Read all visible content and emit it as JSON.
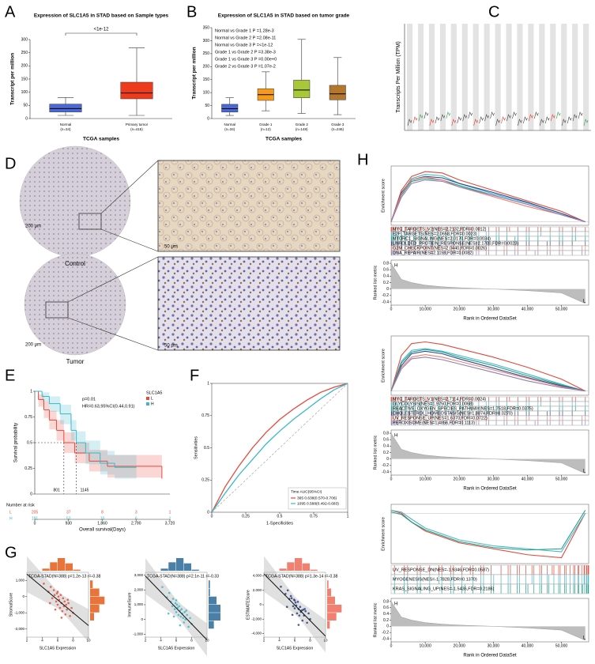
{
  "image_panel": {
    "panel": "D",
    "labels": [
      "Control",
      "Tumor"
    ],
    "scale_bars": [
      "200 μm",
      "50 μm"
    ]
  },
  "chart_data": [
    {
      "panel": "A",
      "type": "box",
      "title": "Expression of SLC1A5 in STAD based on Sample types",
      "annotation": "<1e-12",
      "categories": [
        "Normal",
        "Primary tumor"
      ],
      "category_notes": [
        "(n=34)",
        "(n=415)"
      ],
      "boxes": [
        {
          "color": "#4a69d6",
          "min": 12,
          "q1": 25,
          "median": 38,
          "q3": 55,
          "max": 80
        },
        {
          "color": "#ee3b1c",
          "min": 12,
          "q1": 75,
          "median": 97,
          "q3": 138,
          "max": 268
        }
      ],
      "ylim": [
        0,
        300
      ],
      "yticks": [
        0,
        50,
        100,
        150,
        200,
        250,
        300
      ],
      "ylabel": "Transcript per million",
      "xlabel": "TCGA samples"
    },
    {
      "panel": "B",
      "type": "box",
      "title": "Expression of SLC1A5 in STAD based on tumor grade",
      "annotations": [
        "Normal vs Grade 1   P =1.28e-3",
        "Normal vs Grade 2   P =2.08e-11",
        "Normal vs Grade 3   P =<1e-12",
        "Grade 1 vs Grade 2   P =3.38e-3",
        "Grade 1 vs Grade 3   P =0.00e+0",
        "Grade 2 vs Grade 3   P =1.07e-2"
      ],
      "categories": [
        "Normal",
        "Grade 1",
        "Grade 2",
        "Grade 3"
      ],
      "category_notes": [
        "(n=34)",
        "(n=12)",
        "(n=148)",
        "(n=246)"
      ],
      "boxes": [
        {
          "color": "#4a69d6",
          "min": 12,
          "q1": 25,
          "median": 38,
          "q3": 55,
          "max": 80
        },
        {
          "color": "#f59a1a",
          "min": 30,
          "q1": 70,
          "median": 92,
          "q3": 115,
          "max": 180
        },
        {
          "color": "#a8c83a",
          "min": 20,
          "q1": 80,
          "median": 110,
          "q3": 148,
          "max": 305
        },
        {
          "color": "#b3772e",
          "min": 15,
          "q1": 72,
          "median": 95,
          "q3": 128,
          "max": 235
        }
      ],
      "ylim": [
        0,
        350
      ],
      "yticks": [
        0,
        50,
        100,
        150,
        200,
        250,
        300,
        350
      ],
      "ylabel": "Transcript per million",
      "xlabel": "TCGA samples"
    },
    {
      "panel": "C",
      "type": "strip",
      "ylabel": "Transcripts Per Million (TPM)"
    },
    {
      "panel": "E",
      "type": "km",
      "annotations": [
        "p=0.01",
        "HR=0.63,95%CI(0.44,0.91)"
      ],
      "legend_title": "SLC1A5",
      "series": [
        {
          "name": "L",
          "color": "#e8473c",
          "x": [
            0,
            100,
            250,
            400,
            600,
            801,
            1100,
            1500,
            2000,
            3500
          ],
          "values": [
            1,
            0.92,
            0.82,
            0.72,
            0.62,
            0.5,
            0.4,
            0.32,
            0.27,
            0.15
          ],
          "lower": [
            1,
            0.85,
            0.74,
            0.63,
            0.52,
            0.4,
            0.3,
            0.22,
            0.16,
            0.02
          ],
          "upper": [
            1,
            0.97,
            0.9,
            0.81,
            0.72,
            0.6,
            0.5,
            0.43,
            0.38,
            0.3
          ],
          "at_risk": [
            205,
            37,
            8,
            3,
            1
          ]
        },
        {
          "name": "H",
          "color": "#39b8c9",
          "x": [
            0,
            200,
            400,
            700,
            1000,
            1145,
            1400,
            1800,
            2200,
            2800
          ],
          "values": [
            1,
            0.95,
            0.88,
            0.78,
            0.62,
            0.5,
            0.4,
            0.3,
            0.26,
            0.26
          ],
          "lower": [
            1,
            0.9,
            0.8,
            0.68,
            0.52,
            0.39,
            0.29,
            0.19,
            0.15,
            0.12
          ],
          "upper": [
            1,
            0.99,
            0.95,
            0.87,
            0.72,
            0.61,
            0.52,
            0.42,
            0.38,
            0.4
          ],
          "at_risk": [
            181,
            52,
            10,
            6,
            1
          ]
        }
      ],
      "medians": [
        801,
        1145
      ],
      "risk_title": "Number at risk",
      "xlim": [
        0,
        3720
      ],
      "xticks": [
        0,
        930,
        {
          "value": 1860,
          "label": "1,860"
        },
        {
          "value": 2790,
          "label": "2,790"
        },
        {
          "value": 3720,
          "label": "3,720"
        }
      ],
      "ylim": [
        0,
        1
      ],
      "yticks": [
        0,
        0.25,
        0.5,
        0.75,
        1
      ],
      "ylabel": "Survival probability",
      "xlabel": "Overall survival(Days)"
    },
    {
      "panel": "F",
      "type": "roc",
      "legend_title": "Time AUC(95%CI)",
      "x": [
        0,
        0.1,
        0.2,
        0.3,
        0.4,
        0.5,
        0.6,
        0.7,
        0.8,
        0.9,
        1
      ],
      "series": [
        {
          "name": "365 0.638(0.570-0.706)",
          "color": "#e8473c",
          "values": [
            0,
            0.2,
            0.36,
            0.5,
            0.62,
            0.72,
            0.8,
            0.87,
            0.93,
            0.97,
            1
          ]
        },
        {
          "name": "1095 0.588(0.492-0.683)",
          "color": "#39b8c9",
          "values": [
            0,
            0.15,
            0.29,
            0.41,
            0.53,
            0.63,
            0.72,
            0.8,
            0.88,
            0.95,
            1
          ]
        }
      ],
      "xlim": [
        0,
        1
      ],
      "ylim": [
        0,
        1
      ],
      "xticks": [
        0,
        0.25,
        0.5,
        0.75,
        1
      ],
      "yticks": [
        0,
        0.25,
        0.5,
        0.75,
        1
      ],
      "xlabel": "1-Specificities",
      "ylabel": "Sensitivities"
    },
    {
      "panel": "G",
      "type": "scatter_hist",
      "title": "TCGA-STAD(N=388) p=1.2e-13 r=-0.38",
      "color": "#e0503c",
      "hist_color": "#e8743c",
      "x": [
        4.2,
        4.8,
        5.1,
        5.3,
        5.5,
        5.6,
        5.8,
        5.9,
        6.0,
        6.1,
        6.2,
        6.3,
        6.4,
        6.5,
        6.6,
        6.7,
        6.8,
        6.9,
        7.0,
        7.1,
        7.2,
        7.4,
        7.6,
        7.8,
        8.0,
        5.0,
        6.0,
        6.5,
        7.3,
        5.7
      ],
      "values": [
        800,
        300,
        600,
        -100,
        400,
        100,
        -300,
        200,
        -500,
        0,
        -200,
        -700,
        100,
        -400,
        -900,
        -100,
        -600,
        -300,
        -1100,
        -500,
        -800,
        -400,
        -1200,
        -700,
        -1000,
        -400,
        300,
        -1300,
        -200,
        -800
      ],
      "xlim": [
        2,
        10
      ],
      "xticks": [
        2,
        4,
        6,
        8,
        10
      ],
      "ylim": [
        -2500,
        1500
      ],
      "yticks": [
        {
          "value": -2000,
          "label": "-2,000"
        },
        {
          "value": -1000,
          "label": "-1,000"
        },
        0,
        {
          "value": 1000,
          "label": "1,000"
        }
      ],
      "xlabel": "SLC1A5 Expression",
      "ylabel": "StromalScore"
    },
    {
      "type": "scatter_hist",
      "title": "TCGA-STAD(N=388) p=2.1e-11 r=-0.33",
      "color": "#3cb8cc",
      "hist_color": "#4a7fa8",
      "x": [
        4.2,
        4.8,
        5.1,
        5.3,
        5.5,
        5.6,
        5.8,
        5.9,
        6.0,
        6.1,
        6.2,
        6.3,
        6.4,
        6.5,
        6.6,
        6.7,
        6.8,
        6.9,
        7.0,
        7.1,
        7.2,
        7.4,
        7.6,
        7.8,
        8.0,
        5.0,
        6.0,
        6.5,
        7.3,
        5.7
      ],
      "values": [
        2200,
        1500,
        1800,
        1200,
        900,
        1400,
        700,
        1100,
        500,
        1000,
        800,
        300,
        900,
        600,
        200,
        700,
        400,
        100,
        -200,
        500,
        0,
        300,
        -500,
        100,
        -300,
        400,
        1300,
        -400,
        600,
        200
      ],
      "xlim": [
        2,
        10
      ],
      "xticks": [
        2,
        4,
        6,
        8,
        10
      ],
      "ylim": [
        -1200,
        3200
      ],
      "yticks": [
        {
          "value": -1000,
          "label": "-1,000"
        },
        0,
        {
          "value": 1000,
          "label": "1,000"
        },
        {
          "value": 2000,
          "label": "2,000"
        },
        {
          "value": 3000,
          "label": "3,000"
        }
      ],
      "xlabel": "SLC1A5 Expression",
      "ylabel": "ImmuneScore"
    },
    {
      "type": "scatter_hist",
      "title": "TCGA-STAD(N=388) p=1.3e-14 r=-0.38",
      "color": "#2c3e80",
      "hist_color": "#f08070",
      "x": [
        4.2,
        4.8,
        5.1,
        5.3,
        5.5,
        5.6,
        5.8,
        5.9,
        6.0,
        6.1,
        6.2,
        6.3,
        6.4,
        6.5,
        6.6,
        6.7,
        6.8,
        6.9,
        7.0,
        7.1,
        7.2,
        7.4,
        7.6,
        7.8,
        8.0,
        5.0,
        6.0,
        6.5,
        7.3,
        5.7
      ],
      "values": [
        2500,
        1500,
        2000,
        800,
        1200,
        900,
        -200,
        700,
        -500,
        300,
        -100,
        -1200,
        400,
        -600,
        -1500,
        -300,
        -1000,
        -800,
        -2200,
        -700,
        -1500,
        -900,
        -2500,
        -1200,
        -2000,
        -300,
        600,
        -2800,
        -600,
        -1400
      ],
      "xlim": [
        2,
        10
      ],
      "xticks": [
        2,
        4,
        6,
        8,
        10
      ],
      "ylim": [
        -4500,
        4500
      ],
      "yticks": [
        {
          "value": -4000,
          "label": "-4,000"
        },
        {
          "value": -2000,
          "label": "-2,000"
        },
        0,
        {
          "value": 2000,
          "label": "2,000"
        },
        {
          "value": 4000,
          "label": "4,000"
        }
      ],
      "xlabel": "SLC1A5 Expression",
      "ylabel": "ESTIMATEScore"
    },
    {
      "panel": "H",
      "type": "gsea",
      "ylabel": "Enrichment score",
      "y2label": "Ranked list metric",
      "xlabel": "Rank in Ordered DataSet",
      "high_label": "H",
      "low_label": "L",
      "x": [
        0,
        3000,
        6000,
        10000,
        15000,
        20000,
        30000,
        40000,
        50000,
        57000
      ],
      "metric": [
        0.8,
        0.3,
        0.2,
        0.12,
        0.07,
        0.04,
        0,
        -0.05,
        -0.12,
        -0.45
      ],
      "series": [
        {
          "name": "MYC_TARGETS_V2(NES=2.2132,FDR=0.0012)",
          "color": "#e04a3a",
          "values": [
            0,
            0.45,
            0.65,
            0.72,
            0.7,
            0.6,
            0.45,
            0.3,
            0.15,
            0
          ]
        },
        {
          "name": "E2F_TARGETS(NES=2.0658,FDR=0.0023)",
          "color": "#4fb3c8",
          "values": [
            0,
            0.4,
            0.62,
            0.68,
            0.66,
            0.55,
            0.4,
            0.27,
            0.12,
            0
          ]
        },
        {
          "name": "MTORC1_SIGNALING(NES=2.0170,FDR=0.0034)",
          "color": "#1b9e8a",
          "values": [
            0,
            0.38,
            0.58,
            0.62,
            0.6,
            0.52,
            0.38,
            0.25,
            0.1,
            0
          ]
        },
        {
          "name": "UNFOLDED_PROTEIN_RESPONSE(NES=2.1700,FDR=0.0023)",
          "color": "#2b4c8c",
          "values": [
            0,
            0.42,
            0.6,
            0.65,
            0.63,
            0.55,
            0.42,
            0.28,
            0.12,
            0
          ]
        },
        {
          "name": "G2M_CHECKPOINT(NES=2.0440,FDR=0.0026)",
          "color": "#f08070",
          "values": [
            0,
            0.4,
            0.6,
            0.64,
            0.6,
            0.5,
            0.36,
            0.22,
            0.1,
            0
          ]
        },
        {
          "name": "DNA_REPAIR(NES=2.1159,FDR=0.0082)",
          "color": "#8f7fb8",
          "values": [
            0,
            0.35,
            0.55,
            0.6,
            0.58,
            0.5,
            0.38,
            0.25,
            0.1,
            0
          ]
        }
      ],
      "xlim": [
        0,
        58000
      ],
      "xticks": [
        0,
        {
          "value": 10000,
          "label": "10,000"
        },
        {
          "value": 20000,
          "label": "20,000"
        },
        {
          "value": 30000,
          "label": "30,000"
        },
        {
          "value": 40000,
          "label": "40,000"
        },
        {
          "value": 50000,
          "label": "50,000"
        }
      ],
      "ylim": [
        -0.05,
        0.8
      ],
      "y2lim": [
        -0.5,
        0.9
      ],
      "y2ticks": [
        0.8,
        0.6,
        0.4,
        0.2,
        0,
        -0.2,
        -0.4
      ]
    },
    {
      "type": "gsea",
      "ylabel": "Enrichment score",
      "y2label": "Ranked list metric",
      "xlabel": "Rank in Ordered DataSet",
      "high_label": "H",
      "low_label": "L",
      "x": [
        0,
        3000,
        6000,
        10000,
        15000,
        20000,
        30000,
        40000,
        50000,
        57000
      ],
      "metric": [
        0.8,
        0.3,
        0.2,
        0.12,
        0.07,
        0.04,
        0,
        -0.05,
        -0.12,
        -0.45
      ],
      "series": [
        {
          "name": "MYC_TARGETS_V1(NES=2.7114,FDR=0.0024)",
          "color": "#e04a3a",
          "values": [
            0,
            0.42,
            0.56,
            0.58,
            0.55,
            0.5,
            0.4,
            0.28,
            0.14,
            0
          ]
        },
        {
          "name": "GLYCOLYSIS(NES=1.9750,FDR=0.0068)",
          "color": "#4fb3c8",
          "values": [
            0,
            0.35,
            0.48,
            0.5,
            0.47,
            0.42,
            0.32,
            0.2,
            0.08,
            0
          ]
        },
        {
          "name": "REACTIVE_OXYGEN_SPECIES_PATHWAY(NES=1.7518,FDR=0.0375)",
          "color": "#1b9e8a",
          "values": [
            0,
            0.33,
            0.46,
            0.49,
            0.46,
            0.4,
            0.3,
            0.18,
            0.07,
            0
          ]
        },
        {
          "name": "CHOLESTEROL_HOMEOSTASIS(NES=1.8874,FDR=0.0270)",
          "color": "#2b4c8c",
          "values": [
            0,
            0.3,
            0.44,
            0.47,
            0.44,
            0.38,
            0.27,
            0.16,
            0.06,
            0
          ]
        },
        {
          "name": "UV_RESPONSE_UP(NES=1.6370,FDR=0.0722)",
          "color": "#f08070",
          "values": [
            0,
            0.28,
            0.4,
            0.43,
            0.4,
            0.35,
            0.25,
            0.15,
            0.05,
            0
          ]
        },
        {
          "name": "PEROXISOME(NES=1.4856,FDR=0.1113)",
          "color": "#8f7fb8",
          "values": [
            0,
            0.26,
            0.38,
            0.4,
            0.37,
            0.32,
            0.22,
            0.12,
            0.04,
            0
          ]
        }
      ],
      "xlim": [
        0,
        58000
      ],
      "xticks": [
        0,
        {
          "value": 10000,
          "label": "10,000"
        },
        {
          "value": 20000,
          "label": "20,000"
        },
        {
          "value": 30000,
          "label": "30,000"
        },
        {
          "value": 40000,
          "label": "40,000"
        },
        {
          "value": 50000,
          "label": "50,000"
        }
      ],
      "ylim": [
        -0.05,
        0.65
      ],
      "y2lim": [
        -0.5,
        0.9
      ],
      "y2ticks": [
        0.8,
        0.6,
        0.4,
        0.2,
        0,
        -0.2,
        -0.4
      ]
    },
    {
      "type": "gsea",
      "ylabel": "Enrichment score",
      "y2label": "Ranked list metric",
      "xlabel": "Rank in Ordered DataSet",
      "high_label": "H",
      "low_label": "L",
      "x": [
        0,
        3000,
        6000,
        10000,
        15000,
        20000,
        30000,
        40000,
        50000,
        57000
      ],
      "metric": [
        0.8,
        0.3,
        0.2,
        0.12,
        0.07,
        0.04,
        0,
        -0.05,
        -0.12,
        -0.45
      ],
      "series": [
        {
          "name": "UV_RESPONSE_DN(NES=-1.9346,FDR=0.0587)",
          "color": "#e04a3a",
          "values": [
            0.05,
            0,
            -0.15,
            -0.3,
            -0.4,
            -0.5,
            -0.6,
            -0.7,
            -0.75,
            0
          ]
        },
        {
          "name": "MYOGENESIS(NES=-1.7828,FDR=0.1370)",
          "color": "#4fb3c8",
          "values": [
            0.05,
            0.02,
            -0.1,
            -0.25,
            -0.35,
            -0.45,
            -0.55,
            -0.6,
            -0.65,
            0
          ]
        },
        {
          "name": "KRAS_SIGNALING_UP(NES=-1.5436,FDR=0.2186)",
          "color": "#1b9e8a",
          "values": [
            0.02,
            -0.02,
            -0.15,
            -0.28,
            -0.38,
            -0.48,
            -0.58,
            -0.62,
            -0.6,
            0.05
          ]
        }
      ],
      "xlim": [
        0,
        58000
      ],
      "xticks": [
        0,
        {
          "value": 10000,
          "label": "10,000"
        },
        {
          "value": 20000,
          "label": "20,000"
        },
        {
          "value": 30000,
          "label": "30,000"
        },
        {
          "value": 40000,
          "label": "40,000"
        },
        {
          "value": 50000,
          "label": "50,000"
        }
      ],
      "ylim": [
        -0.85,
        0.15
      ],
      "y2lim": [
        -0.5,
        0.9
      ],
      "y2ticks": [
        0.8,
        0.6,
        0.4,
        0.2,
        0,
        -0.2,
        -0.4
      ]
    }
  ]
}
